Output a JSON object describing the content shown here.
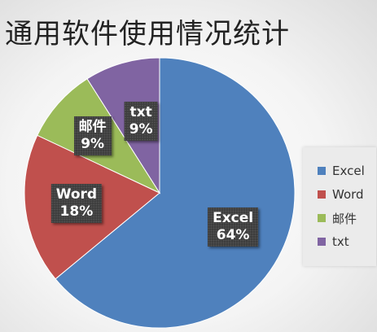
{
  "chart_data": {
    "type": "pie",
    "title": "通用软件使用情况统计",
    "categories": [
      "Excel",
      "Word",
      "邮件",
      "txt"
    ],
    "values": [
      64,
      18,
      9,
      9
    ],
    "colors": [
      "#4f81bd",
      "#c0504d",
      "#9bbb59",
      "#8064a2"
    ],
    "data_labels": [
      {
        "name": "Excel",
        "value": "64%"
      },
      {
        "name": "Word",
        "value": "18%"
      },
      {
        "name": "邮件",
        "value": "9%"
      },
      {
        "name": "txt",
        "value": "9%"
      }
    ],
    "legend_position": "right",
    "start_angle": "12 o'clock, clockwise"
  }
}
